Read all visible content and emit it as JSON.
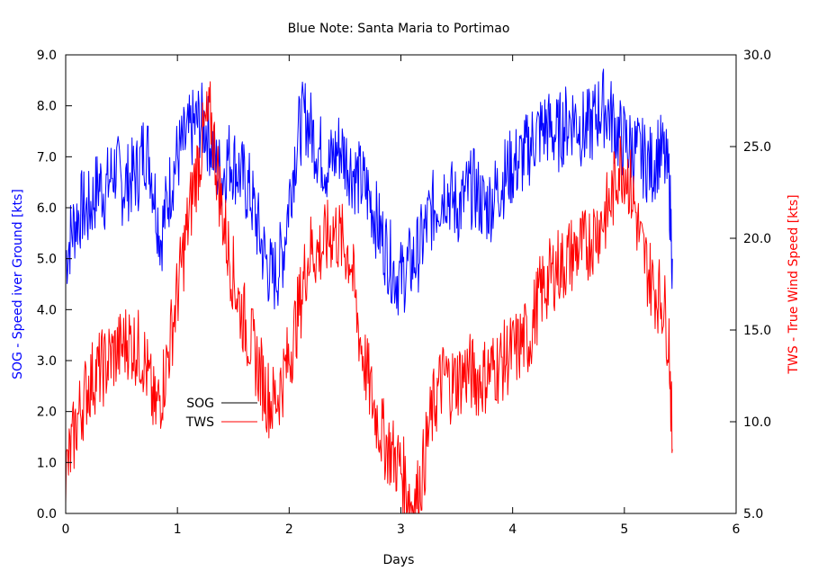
{
  "chart_data": {
    "type": "line",
    "title": "Blue Note: Santa Maria to Portimao",
    "xlabel": "Days",
    "ylabel": "SOG - Speed iver Ground [kts]",
    "y2label": "TWS - True Wind Speed [kts]",
    "xlim": [
      0,
      6
    ],
    "ylim": [
      0,
      9
    ],
    "y2lim": [
      5,
      30
    ],
    "xticks": [
      "0",
      "1",
      "2",
      "3",
      "4",
      "5",
      "6"
    ],
    "yticks": [
      "0.0",
      "1.0",
      "2.0",
      "3.0",
      "4.0",
      "5.0",
      "6.0",
      "7.0",
      "8.0",
      "9.0"
    ],
    "y2ticks": [
      "5.0",
      "10.0",
      "15.0",
      "20.0",
      "25.0",
      "30.0"
    ],
    "grid": false,
    "legend": "left-center",
    "series": [
      {
        "name": "SOG",
        "axis": "left",
        "color": "#0000ff",
        "x": [
          0.0,
          0.05,
          0.1,
          0.15,
          0.2,
          0.25,
          0.3,
          0.35,
          0.4,
          0.45,
          0.5,
          0.55,
          0.6,
          0.65,
          0.7,
          0.75,
          0.8,
          0.85,
          0.9,
          0.95,
          1.0,
          1.05,
          1.1,
          1.15,
          1.2,
          1.25,
          1.3,
          1.35,
          1.4,
          1.45,
          1.5,
          1.55,
          1.6,
          1.65,
          1.7,
          1.75,
          1.8,
          1.85,
          1.9,
          1.95,
          2.0,
          2.05,
          2.1,
          2.15,
          2.2,
          2.25,
          2.3,
          2.35,
          2.4,
          2.45,
          2.5,
          2.55,
          2.6,
          2.65,
          2.7,
          2.75,
          2.8,
          2.85,
          2.9,
          2.95,
          3.0,
          3.05,
          3.1,
          3.15,
          3.2,
          3.25,
          3.3,
          3.35,
          3.4,
          3.45,
          3.5,
          3.55,
          3.6,
          3.65,
          3.7,
          3.75,
          3.8,
          3.85,
          3.9,
          3.95,
          4.0,
          4.05,
          4.1,
          4.15,
          4.2,
          4.25,
          4.3,
          4.35,
          4.4,
          4.45,
          4.5,
          4.55,
          4.6,
          4.65,
          4.7,
          4.75,
          4.8,
          4.85,
          4.9,
          4.95,
          5.0,
          5.05,
          5.1,
          5.15,
          5.2,
          5.25,
          5.3,
          5.35,
          5.4,
          5.43
        ],
        "y": [
          5.0,
          5.5,
          5.8,
          6.0,
          5.9,
          6.2,
          6.5,
          6.3,
          6.6,
          6.8,
          6.4,
          6.5,
          6.6,
          6.7,
          7.2,
          7.0,
          6.2,
          5.4,
          6.0,
          6.6,
          7.0,
          7.2,
          7.4,
          7.6,
          7.7,
          7.6,
          7.3,
          6.8,
          6.6,
          7.0,
          6.9,
          6.7,
          6.5,
          6.3,
          5.8,
          5.3,
          4.9,
          4.6,
          4.8,
          5.2,
          6.2,
          7.0,
          7.6,
          7.8,
          7.5,
          7.2,
          7.0,
          6.8,
          7.0,
          7.2,
          7.0,
          6.8,
          6.6,
          6.5,
          6.3,
          6.0,
          5.6,
          5.3,
          5.0,
          4.7,
          4.6,
          4.8,
          4.9,
          5.1,
          5.4,
          5.8,
          6.0,
          6.2,
          6.4,
          6.2,
          6.0,
          6.1,
          6.3,
          6.4,
          6.2,
          6.0,
          6.1,
          6.3,
          6.5,
          6.7,
          6.8,
          6.9,
          7.0,
          7.2,
          7.4,
          7.5,
          7.6,
          7.5,
          7.4,
          7.6,
          7.7,
          7.8,
          7.6,
          7.5,
          7.6,
          7.8,
          8.0,
          7.9,
          7.7,
          7.4,
          7.3,
          7.2,
          7.1,
          7.0,
          6.9,
          6.8,
          7.1,
          7.0,
          6.5,
          5.0
        ]
      },
      {
        "name": "TWS",
        "axis": "right",
        "color": "#ff0000",
        "x": [
          0.0,
          0.05,
          0.1,
          0.15,
          0.2,
          0.25,
          0.3,
          0.35,
          0.4,
          0.45,
          0.5,
          0.55,
          0.6,
          0.65,
          0.7,
          0.75,
          0.8,
          0.85,
          0.9,
          0.95,
          1.0,
          1.05,
          1.1,
          1.15,
          1.2,
          1.25,
          1.3,
          1.35,
          1.4,
          1.45,
          1.5,
          1.55,
          1.6,
          1.65,
          1.7,
          1.75,
          1.8,
          1.85,
          1.9,
          1.95,
          2.0,
          2.05,
          2.1,
          2.15,
          2.2,
          2.25,
          2.3,
          2.35,
          2.4,
          2.45,
          2.5,
          2.55,
          2.6,
          2.65,
          2.7,
          2.75,
          2.8,
          2.85,
          2.9,
          2.95,
          3.0,
          3.05,
          3.1,
          3.15,
          3.2,
          3.25,
          3.3,
          3.35,
          3.4,
          3.45,
          3.5,
          3.55,
          3.6,
          3.65,
          3.7,
          3.75,
          3.8,
          3.85,
          3.9,
          3.95,
          4.0,
          4.05,
          4.1,
          4.15,
          4.2,
          4.25,
          4.3,
          4.35,
          4.4,
          4.45,
          4.5,
          4.55,
          4.6,
          4.65,
          4.7,
          4.75,
          4.8,
          4.85,
          4.9,
          4.95,
          5.0,
          5.05,
          5.1,
          5.15,
          5.2,
          5.25,
          5.3,
          5.35,
          5.4,
          5.43
        ],
        "y": [
          7.0,
          8.5,
          10.0,
          11.0,
          12.0,
          12.5,
          12.8,
          13.0,
          13.5,
          13.8,
          14.0,
          14.5,
          14.2,
          14.0,
          13.5,
          12.0,
          10.5,
          11.5,
          13.0,
          15.0,
          17.0,
          19.0,
          21.0,
          23.0,
          24.5,
          26.0,
          26.5,
          24.0,
          21.5,
          19.5,
          18.0,
          16.5,
          15.5,
          14.5,
          13.5,
          12.5,
          11.5,
          11.0,
          11.5,
          12.5,
          13.5,
          15.0,
          16.5,
          18.5,
          19.5,
          19.2,
          19.5,
          20.0,
          20.5,
          20.0,
          19.5,
          19.0,
          16.0,
          14.0,
          12.5,
          11.0,
          10.0,
          9.0,
          8.5,
          8.0,
          7.5,
          6.5,
          5.5,
          6.0,
          7.5,
          9.5,
          11.0,
          12.0,
          12.5,
          12.0,
          12.3,
          12.5,
          12.8,
          12.5,
          12.3,
          12.5,
          12.8,
          13.0,
          13.2,
          13.5,
          13.8,
          14.0,
          14.5,
          14.5,
          16.0,
          17.0,
          17.5,
          18.0,
          18.5,
          18.5,
          19.0,
          19.2,
          19.5,
          19.5,
          20.0,
          20.5,
          21.0,
          21.5,
          22.5,
          24.0,
          24.0,
          23.0,
          21.5,
          19.5,
          18.5,
          17.5,
          17.0,
          16.5,
          14.5,
          8.5
        ]
      }
    ]
  }
}
